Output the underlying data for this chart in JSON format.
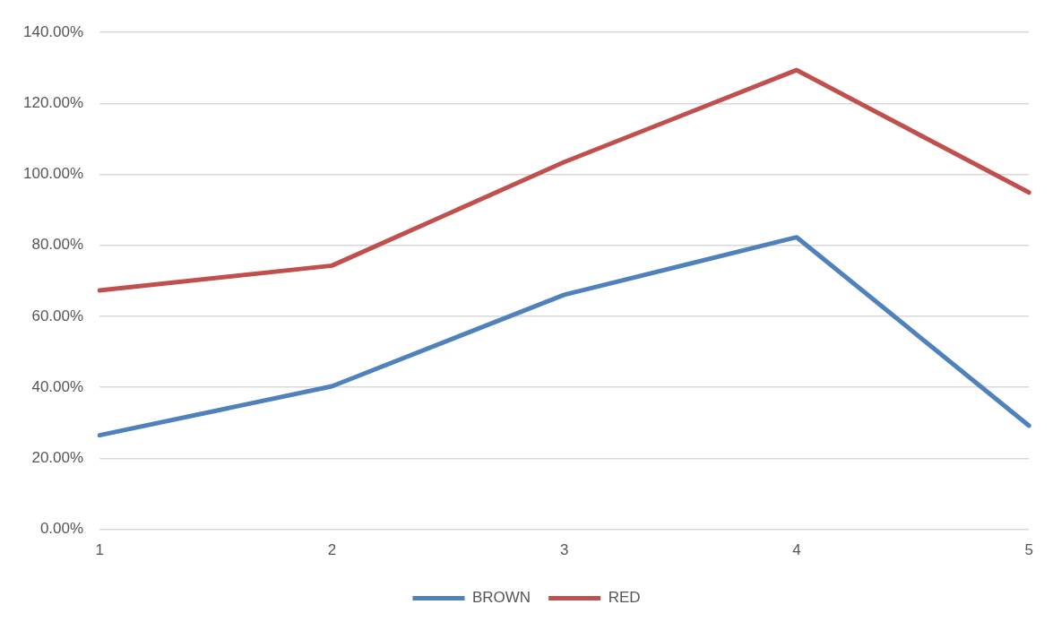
{
  "chart_data": {
    "type": "line",
    "categories": [
      "1",
      "2",
      "3",
      "4",
      "5"
    ],
    "series": [
      {
        "name": "BROWN",
        "color": "#4f81bd",
        "values": [
          26.5,
          40.3,
          66.1,
          82.3,
          29.2
        ]
      },
      {
        "name": "RED",
        "color": "#c0504d",
        "values": [
          67.3,
          74.3,
          103.5,
          129.4,
          94.9
        ]
      }
    ],
    "ylim": [
      0,
      140
    ],
    "yticks": [
      {
        "value": 0,
        "label": "0.00%"
      },
      {
        "value": 20,
        "label": "20.00%"
      },
      {
        "value": 40,
        "label": "40.00%"
      },
      {
        "value": 60,
        "label": "60.00%"
      },
      {
        "value": 80,
        "label": "80.00%"
      },
      {
        "value": 100,
        "label": "100.00%"
      },
      {
        "value": 120,
        "label": "120.00%"
      },
      {
        "value": 140,
        "label": "140.00%"
      }
    ],
    "grid": "y",
    "legend": "bottom",
    "marker": "none",
    "line_style": "solid"
  }
}
